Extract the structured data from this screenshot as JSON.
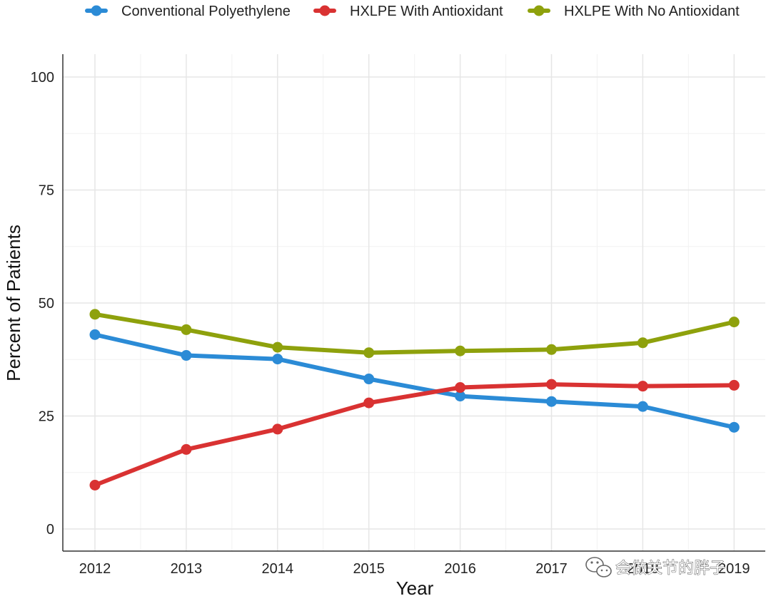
{
  "chart_data": {
    "type": "line",
    "title": "",
    "xlabel": "Year",
    "ylabel": "Percent of Patients",
    "x": [
      2012,
      2013,
      2014,
      2015,
      2016,
      2017,
      2018,
      2019
    ],
    "x_tick_labels": [
      "2012",
      "2013",
      "2014",
      "2015",
      "2016",
      "2017",
      "2018",
      "2019"
    ],
    "y_ticks": [
      0,
      25,
      50,
      75,
      100
    ],
    "y_tick_labels": [
      "0",
      "25",
      "50",
      "75",
      "100"
    ],
    "ylim": [
      -5,
      105
    ],
    "grid": true,
    "legend_position": "top",
    "series": [
      {
        "name": "Conventional Polyethylene",
        "color": "#2b8bd6",
        "values": [
          43.0,
          38.4,
          37.6,
          33.2,
          29.4,
          28.2,
          27.1,
          22.5
        ]
      },
      {
        "name": "HXLPE With Antioxidant",
        "color": "#d93232",
        "values": [
          9.7,
          17.6,
          22.1,
          27.9,
          31.3,
          32.0,
          31.6,
          31.8
        ]
      },
      {
        "name": "HXLPE With No Antioxidant",
        "color": "#8ea10c",
        "values": [
          47.5,
          44.1,
          40.2,
          39.0,
          39.4,
          39.7,
          41.2,
          45.8
        ]
      }
    ]
  },
  "watermark": {
    "text": "会做关节的胖子",
    "icon": "wechat-icon"
  }
}
